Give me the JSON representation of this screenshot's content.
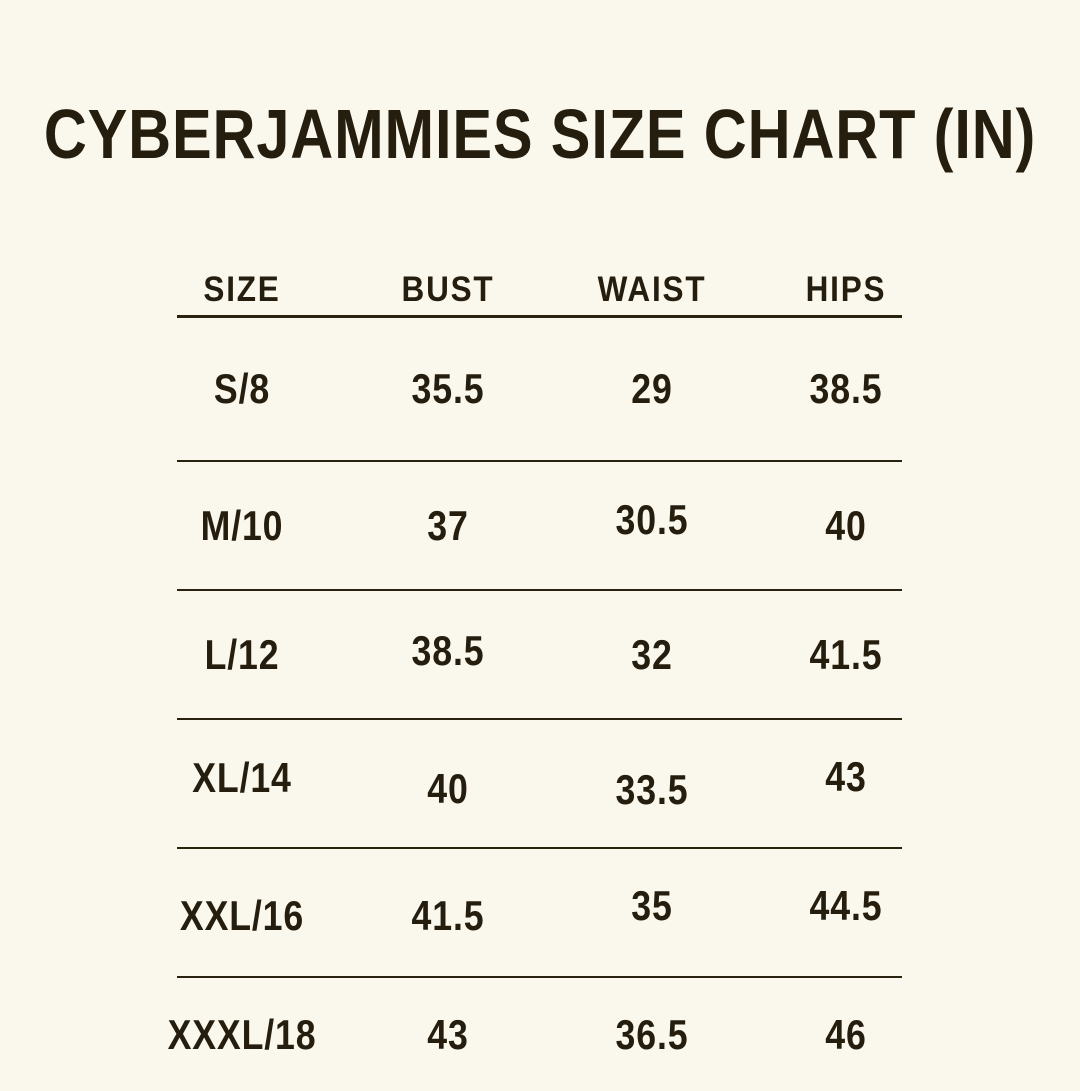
{
  "title": "CYBERJAMMIES SIZE CHART (IN)",
  "units": "inches",
  "colors": {
    "background": "#faf7ec",
    "text": "#251e0f",
    "rule": "#29220f"
  },
  "table": {
    "headers": [
      "SIZE",
      "BUST",
      "WAIST",
      "HIPS"
    ],
    "rows": [
      {
        "size": "S/8",
        "bust": "35.5",
        "waist": "29",
        "hips": "38.5"
      },
      {
        "size": "M/10",
        "bust": "37",
        "waist": "30.5",
        "hips": "40"
      },
      {
        "size": "L/12",
        "bust": "38.5",
        "waist": "32",
        "hips": "41.5"
      },
      {
        "size": "XL/14",
        "bust": "40",
        "waist": "33.5",
        "hips": "43"
      },
      {
        "size": "XXL/16",
        "bust": "41.5",
        "waist": "35",
        "hips": "44.5"
      },
      {
        "size": "XXXL/18",
        "bust": "43",
        "waist": "36.5",
        "hips": "46"
      }
    ]
  },
  "chart_data": {
    "type": "table",
    "title": "CYBERJAMMIES SIZE CHART (IN)",
    "columns": [
      "SIZE",
      "BUST",
      "WAIST",
      "HIPS"
    ],
    "rows": [
      [
        "S/8",
        35.5,
        29,
        38.5
      ],
      [
        "M/10",
        37,
        30.5,
        40
      ],
      [
        "L/12",
        38.5,
        32,
        41.5
      ],
      [
        "XL/14",
        40,
        33.5,
        43
      ],
      [
        "XXL/16",
        41.5,
        35,
        44.5
      ],
      [
        "XXXL/18",
        43,
        36.5,
        46
      ]
    ],
    "units": "inches",
    "layout_hints": {
      "grid": "horizontal rules only",
      "header_rule": true,
      "background": "cream"
    }
  }
}
